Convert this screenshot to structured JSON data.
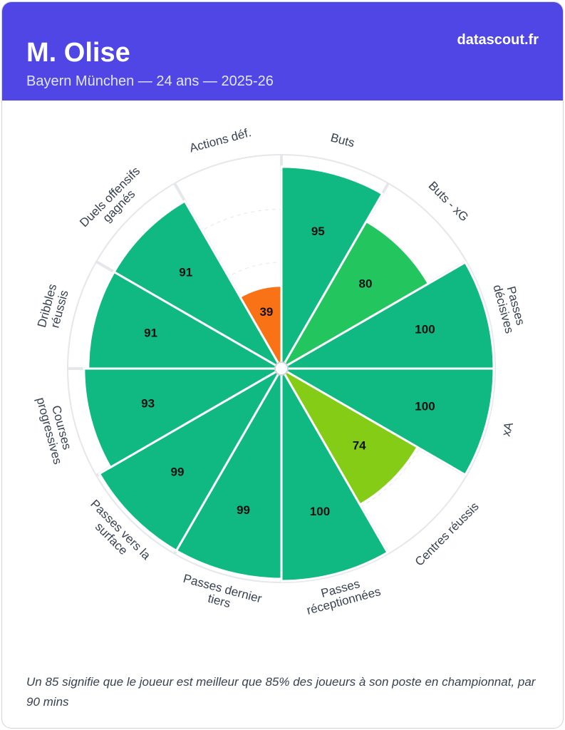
{
  "header": {
    "title": "M. Olise",
    "subtitle": "Bayern München — 24 ans — 2025-26",
    "brand": "datascout.fr"
  },
  "chart_data": {
    "type": "pizza",
    "categories": [
      [
        "Buts"
      ],
      [
        "Buts - xG"
      ],
      [
        "Passes",
        "décisives"
      ],
      [
        "xA"
      ],
      [
        "Centres réussis"
      ],
      [
        "Passes",
        "réceptionnées"
      ],
      [
        "Passes dernier",
        "tiers"
      ],
      [
        "Passes vers la",
        "surface"
      ],
      [
        "Courses",
        "progressives"
      ],
      [
        "Dribbles",
        "réussis"
      ],
      [
        "Duels offensifs",
        "gagnés"
      ],
      [
        "Actions déf."
      ]
    ],
    "values": [
      95,
      80,
      100,
      100,
      74,
      100,
      99,
      99,
      93,
      91,
      91,
      39
    ],
    "colors": [
      "#10b981",
      "#22c55e",
      "#10b981",
      "#10b981",
      "#84cc16",
      "#10b981",
      "#10b981",
      "#10b981",
      "#10b981",
      "#10b981",
      "#10b981",
      "#f97316"
    ],
    "rlim": [
      0,
      100
    ],
    "rticks": [
      25,
      50,
      75
    ],
    "grid": true
  },
  "footer": {
    "note": "Un 85 signifie que le joueur est meilleur que 85% des joueurs à son poste en championnat, par 90 mins"
  }
}
